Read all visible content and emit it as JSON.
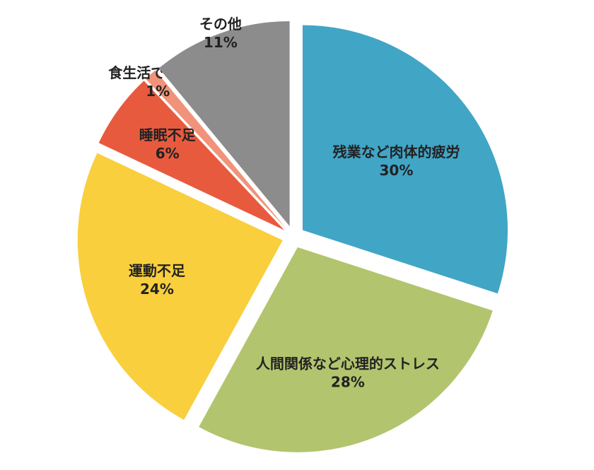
{
  "chart_data": {
    "type": "pie",
    "categories": [
      "残業など肉体的疲労",
      "人間関係など心理的ストレス",
      "運動不足",
      "睡眠不足",
      "食生活で不規則",
      "その他"
    ],
    "values": [
      30,
      28,
      24,
      6,
      1,
      11
    ],
    "value_labels": [
      "30%",
      "28%",
      "24%",
      "6%",
      "1%",
      "11%"
    ],
    "colors": [
      "#41a5c6",
      "#b3c46e",
      "#f9cf3d",
      "#e85a3e",
      "#f0937a",
      "#8c8c8c"
    ]
  }
}
